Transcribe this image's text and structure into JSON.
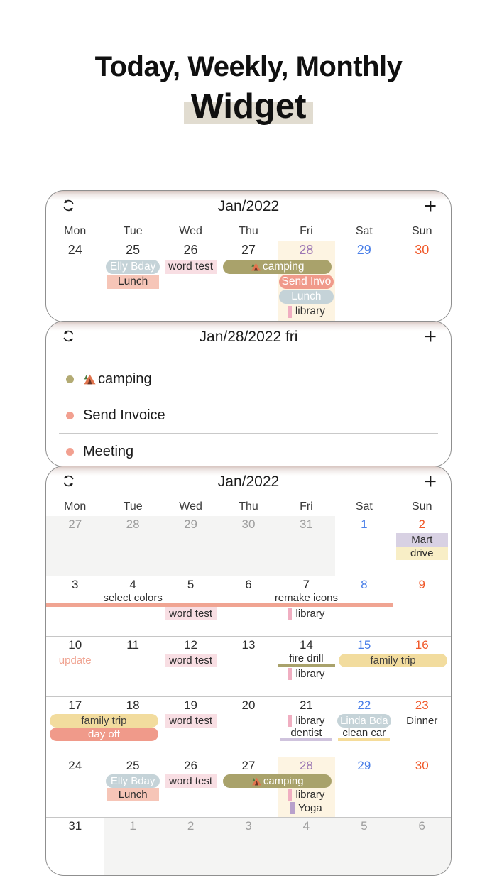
{
  "hero": {
    "line1": "Today, Weekly, Monthly",
    "line2": "Widget",
    "highlight": "#e1dcd0"
  },
  "icons": {
    "add": "+",
    "refresh": "sync-arrows",
    "camping": "tent"
  },
  "palette": {
    "saturday": "#4a7fe8",
    "sunday": "#f0592a",
    "today_text": "#9c77b4",
    "muted_text": "#9e9e9e",
    "today_bg": "#fdf4e2",
    "muted_bg": "#f4f4f3"
  },
  "styles": {
    "olivePill": {
      "kind": "pill",
      "bg": "#a9a26b",
      "fg": "#ffffff"
    },
    "salmonPill": {
      "kind": "pill",
      "bg": "#f09a8a",
      "fg": "#ffffff"
    },
    "bluegrayPill": {
      "kind": "pill",
      "bg": "#c5d3d8",
      "fg": "#ffffff"
    },
    "yellowPill": {
      "kind": "pill",
      "bg": "#f2dc9e",
      "fg": "#3c3c3c"
    },
    "pinkHl": {
      "kind": "hl",
      "bg": "#f8dee3",
      "fg": "#2d2d2d"
    },
    "salmonHl": {
      "kind": "hl",
      "bg": "#f6c5b7",
      "fg": "#2d2d2d"
    },
    "lavenderHl": {
      "kind": "hl",
      "bg": "#d8d1e3",
      "fg": "#2d2d2d"
    },
    "yellowHl": {
      "kind": "hl",
      "bg": "#f8eec6",
      "fg": "#2d2d2d"
    },
    "pinkBar": {
      "kind": "bar",
      "bg": "#f0aec1",
      "fg": "#2d2d2d"
    },
    "purpleBar": {
      "kind": "bar",
      "bg": "#b8a0cb",
      "fg": "#2d2d2d"
    },
    "salmonLine": {
      "kind": "underline",
      "bg": "#f0a492",
      "fg": "#2d2d2d"
    },
    "oliveLine": {
      "kind": "underline",
      "bg": "#a9a26b",
      "fg": "#2d2d2d"
    },
    "lavenderStrike": {
      "kind": "strike",
      "bg": "#cfc3dd",
      "fg": "#2d2d2d"
    },
    "yellowStrike": {
      "kind": "strike",
      "bg": "#f5dc9a",
      "fg": "#2d2d2d"
    },
    "salmonText": {
      "kind": "text",
      "fg": "#f0a492"
    },
    "plainText": {
      "kind": "text",
      "fg": "#2d2d2d"
    }
  },
  "weekly": {
    "title": "Jan/2022",
    "day_names": [
      "Mon",
      "Tue",
      "Wed",
      "Thu",
      "Fri",
      "Sat",
      "Sun"
    ],
    "week": {
      "days": [
        [
          "24"
        ],
        [
          "25"
        ],
        [
          "26"
        ],
        [
          "27"
        ],
        [
          "28",
          "today"
        ],
        [
          "29",
          "sat"
        ],
        [
          "30",
          "sun"
        ]
      ],
      "today_col": 4,
      "rows": [
        [
          {
            "c": 1,
            "s": 1,
            "t": "Elly Bday",
            "st": "bluegrayPill"
          },
          {
            "c": 2,
            "s": 1,
            "t": "word test",
            "st": "pinkHl"
          },
          {
            "c": 3,
            "s": 2,
            "t": "camping",
            "st": "olivePill",
            "icon": "tent"
          }
        ],
        [
          {
            "c": 1,
            "s": 1,
            "t": "Lunch",
            "st": "salmonHl"
          },
          {
            "c": 4,
            "s": 1,
            "t": "Send Invo",
            "st": "salmonPill"
          }
        ],
        [
          {
            "c": 4,
            "s": 1,
            "t": "Lunch",
            "st": "bluegrayPill"
          }
        ],
        [
          {
            "c": 4,
            "s": 1,
            "t": "library",
            "st": "pinkBar"
          }
        ]
      ]
    }
  },
  "daily": {
    "title": "Jan/28/2022 fri",
    "items": [
      {
        "dot": "#b3ab74",
        "label": "camping",
        "icon": "tent"
      },
      {
        "dot": "#f2a090",
        "label": "Send Invoice"
      },
      {
        "dot": "#f2a090",
        "label": "Meeting"
      }
    ]
  },
  "monthly": {
    "title": "Jan/2022",
    "day_names": [
      "Mon",
      "Tue",
      "Wed",
      "Thu",
      "Fri",
      "Sat",
      "Sun"
    ],
    "weeks": [
      {
        "days": [
          [
            "27",
            "muted"
          ],
          [
            "28",
            "muted"
          ],
          [
            "29",
            "muted"
          ],
          [
            "30",
            "muted"
          ],
          [
            "31",
            "muted"
          ],
          [
            "1",
            "sat"
          ],
          [
            "2",
            "sun"
          ]
        ],
        "muted_block": [
          0,
          4
        ],
        "rows": [
          [
            {
              "c": 6,
              "s": 1,
              "t": "Mart",
              "st": "lavenderHl"
            }
          ],
          [
            {
              "c": 6,
              "s": 1,
              "t": "drive",
              "st": "yellowHl"
            }
          ]
        ]
      },
      {
        "days": [
          [
            "3"
          ],
          [
            "4"
          ],
          [
            "5"
          ],
          [
            "6"
          ],
          [
            "7"
          ],
          [
            "8",
            "sat"
          ],
          [
            "9",
            "sun"
          ]
        ],
        "rows": [
          [
            {
              "c": 0,
              "s": 3,
              "t": "select colors",
              "st": "salmonLine"
            },
            {
              "c": 3,
              "s": 3,
              "t": "remake icons",
              "st": "salmonLine"
            }
          ],
          [
            {
              "c": 2,
              "s": 1,
              "t": "word test",
              "st": "pinkHl"
            },
            {
              "c": 4,
              "s": 1,
              "t": "library",
              "st": "pinkBar"
            }
          ]
        ]
      },
      {
        "days": [
          [
            "10"
          ],
          [
            "11"
          ],
          [
            "12"
          ],
          [
            "13"
          ],
          [
            "14"
          ],
          [
            "15",
            "sat"
          ],
          [
            "16",
            "sun"
          ]
        ],
        "rows": [
          [
            {
              "c": 0,
              "s": 1,
              "t": "update",
              "st": "salmonText"
            },
            {
              "c": 2,
              "s": 1,
              "t": "word test",
              "st": "pinkHl"
            },
            {
              "c": 4,
              "s": 1,
              "t": "fire drill",
              "st": "oliveLine"
            },
            {
              "c": 5,
              "s": 2,
              "t": "family trip",
              "st": "yellowPill"
            }
          ],
          [
            {
              "c": 4,
              "s": 1,
              "t": "library",
              "st": "pinkBar"
            }
          ]
        ]
      },
      {
        "days": [
          [
            "17"
          ],
          [
            "18"
          ],
          [
            "19"
          ],
          [
            "20"
          ],
          [
            "21"
          ],
          [
            "22",
            "sat"
          ],
          [
            "23",
            "sun"
          ]
        ],
        "rows": [
          [
            {
              "c": 0,
              "s": 2,
              "t": "family trip",
              "st": "yellowPill"
            },
            {
              "c": 2,
              "s": 1,
              "t": "word test",
              "st": "pinkHl"
            },
            {
              "c": 4,
              "s": 1,
              "t": "library",
              "st": "pinkBar"
            },
            {
              "c": 5,
              "s": 1,
              "t": "Linda Bda",
              "st": "bluegrayPill"
            },
            {
              "c": 6,
              "s": 1,
              "t": "Dinner",
              "st": "plainText"
            }
          ],
          [
            {
              "c": 0,
              "s": 2,
              "t": "day off",
              "st": "salmonPill"
            },
            {
              "c": 4,
              "s": 1,
              "t": "dentist",
              "st": "lavenderStrike"
            },
            {
              "c": 5,
              "s": 1,
              "t": "clean car",
              "st": "yellowStrike"
            }
          ]
        ]
      },
      {
        "days": [
          [
            "24"
          ],
          [
            "25"
          ],
          [
            "26"
          ],
          [
            "27"
          ],
          [
            "28",
            "today"
          ],
          [
            "29",
            "sat"
          ],
          [
            "30",
            "sun"
          ]
        ],
        "today_col": 4,
        "rows": [
          [
            {
              "c": 1,
              "s": 1,
              "t": "Elly Bday",
              "st": "bluegrayPill"
            },
            {
              "c": 2,
              "s": 1,
              "t": "word test",
              "st": "pinkHl"
            },
            {
              "c": 3,
              "s": 2,
              "t": "camping",
              "st": "olivePill",
              "icon": "tent"
            }
          ],
          [
            {
              "c": 1,
              "s": 1,
              "t": "Lunch",
              "st": "salmonHl"
            },
            {
              "c": 4,
              "s": 1,
              "t": "library",
              "st": "pinkBar"
            }
          ],
          [
            {
              "c": 4,
              "s": 1,
              "t": "Yoga",
              "st": "purpleBar"
            }
          ]
        ]
      },
      {
        "days": [
          [
            "31"
          ],
          [
            "1",
            "muted"
          ],
          [
            "2",
            "muted"
          ],
          [
            "3",
            "muted"
          ],
          [
            "4",
            "muted"
          ],
          [
            "5",
            "muted"
          ],
          [
            "6",
            "muted"
          ]
        ],
        "muted_block": [
          1,
          6
        ],
        "rows": []
      }
    ]
  }
}
